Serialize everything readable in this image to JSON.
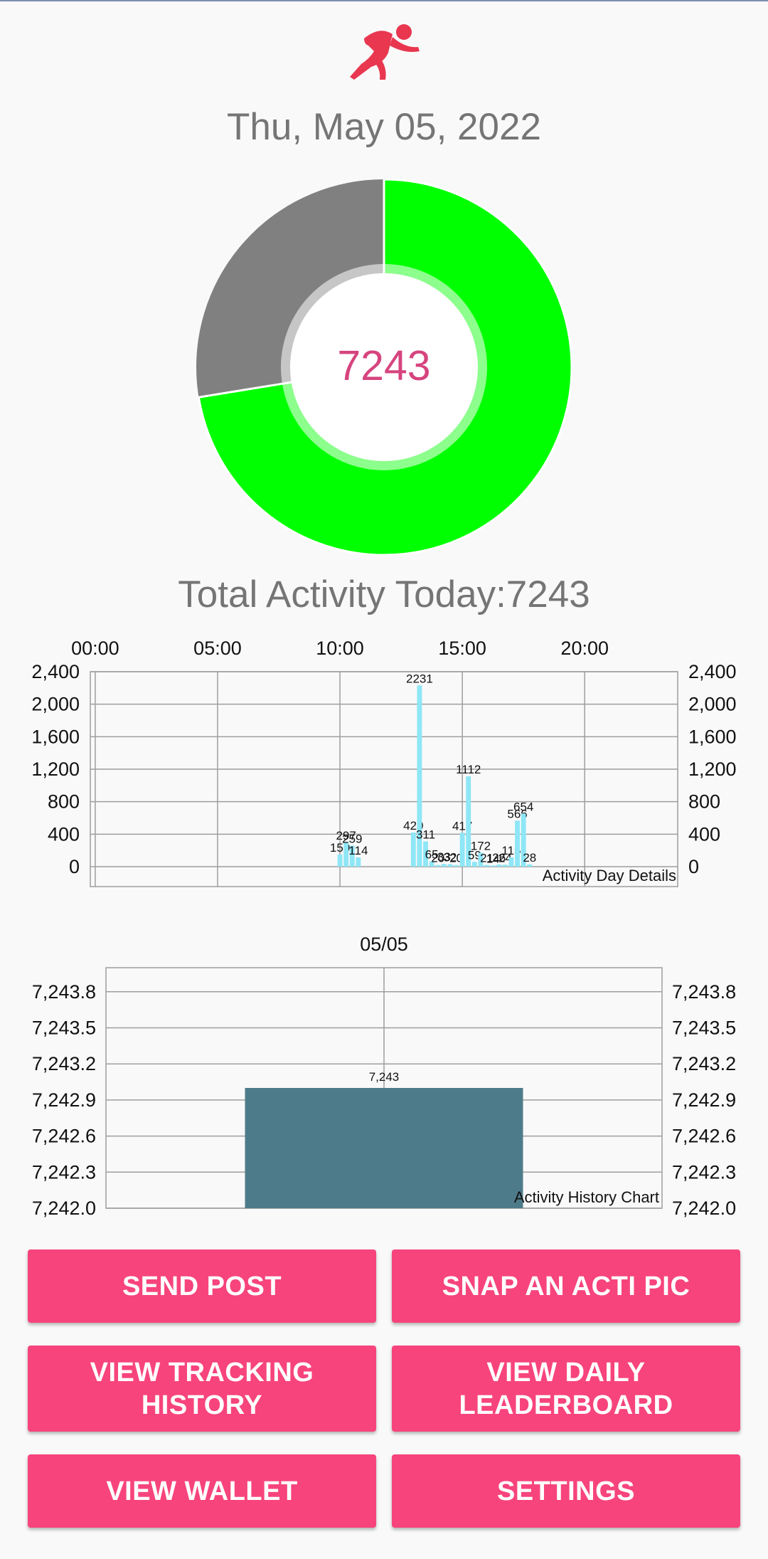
{
  "app": {
    "logo_icon": "running-person-icon",
    "accent": "#f7447c",
    "logo_color": "#e8374f"
  },
  "header": {
    "date": "Thu, May 05, 2022"
  },
  "progress_ring": {
    "value_label": "7243",
    "fraction_complete": 0.7243,
    "complete_color": "#00ff00",
    "remaining_color": "#808080",
    "value_color": "#d6447e"
  },
  "summary": {
    "total_activity": "Total Activity Today:7243"
  },
  "chart_data": [
    {
      "type": "bar",
      "description": "Activity Day Details",
      "x_axis_position": "top",
      "x_ticks": [
        "00:00",
        "05:00",
        "10:00",
        "15:00",
        "20:00"
      ],
      "x_tick_hours": [
        0,
        5,
        10,
        15,
        20
      ],
      "xlim": [
        -0.2,
        23.8
      ],
      "y_ticks": [
        "0",
        "400",
        "800",
        "1,200",
        "1,600",
        "2,000",
        "2,400"
      ],
      "y_tick_values": [
        0,
        400,
        800,
        1200,
        1600,
        2000,
        2400
      ],
      "ylim": [
        0,
        2400
      ],
      "grid": true,
      "dual_y_axis": true,
      "bar_color": "#8ee6f6",
      "bars": [
        {
          "hour": 10.0,
          "value": 150,
          "label": "150"
        },
        {
          "hour": 10.25,
          "value": 297,
          "label": "297"
        },
        {
          "hour": 10.5,
          "value": 259,
          "label": "259"
        },
        {
          "hour": 10.75,
          "value": 114,
          "label": "114"
        },
        {
          "hour": 13.0,
          "value": 420,
          "label": "420"
        },
        {
          "hour": 13.25,
          "value": 2231,
          "label": "2231"
        },
        {
          "hour": 13.5,
          "value": 311,
          "label": "311"
        },
        {
          "hour": 13.75,
          "value": 65,
          "label": "65"
        },
        {
          "hour": 14.0,
          "value": 20,
          "label": "20"
        },
        {
          "hour": 14.25,
          "value": 33,
          "label": "33"
        },
        {
          "hour": 14.5,
          "value": 32,
          "label": "32"
        },
        {
          "hour": 14.75,
          "value": 20,
          "label": "20"
        },
        {
          "hour": 15.0,
          "value": 417,
          "label": "417"
        },
        {
          "hour": 15.25,
          "value": 1112,
          "label": "1112"
        },
        {
          "hour": 15.5,
          "value": 59,
          "label": "59"
        },
        {
          "hour": 15.75,
          "value": 172,
          "label": "172"
        },
        {
          "hour": 16.0,
          "value": 21,
          "label": "21"
        },
        {
          "hour": 16.25,
          "value": 14,
          "label": "14"
        },
        {
          "hour": 16.5,
          "value": 26,
          "label": "26"
        },
        {
          "hour": 16.75,
          "value": 24,
          "label": "24"
        },
        {
          "hour": 17.0,
          "value": 115,
          "label": "115"
        },
        {
          "hour": 17.25,
          "value": 566,
          "label": "566"
        },
        {
          "hour": 17.5,
          "value": 654,
          "label": "654"
        },
        {
          "hour": 17.75,
          "value": 28,
          "label": "28"
        }
      ]
    },
    {
      "type": "bar",
      "description": "Activity History Chart",
      "x_axis_position": "top",
      "categories": [
        "05/05"
      ],
      "values": [
        7243
      ],
      "value_labels": [
        "7,243"
      ],
      "y_ticks": [
        "7,242.0",
        "7,242.3",
        "7,242.6",
        "7,242.9",
        "7,243.2",
        "7,243.5",
        "7,243.8"
      ],
      "y_tick_values": [
        7242.0,
        7242.3,
        7242.6,
        7242.9,
        7243.2,
        7243.5,
        7243.8
      ],
      "ylim": [
        7242.0,
        7244.0
      ],
      "grid": true,
      "dual_y_axis": true,
      "bar_color": "#4e7b89"
    }
  ],
  "buttons": {
    "send_post": "SEND POST",
    "snap_pic": "SNAP AN ACTI PIC",
    "tracking_history": "VIEW TRACKING\nHISTORY",
    "daily_leaderboard": "VIEW DAILY\nLEADERBOARD",
    "wallet": "VIEW WALLET",
    "settings": "SETTINGS"
  }
}
